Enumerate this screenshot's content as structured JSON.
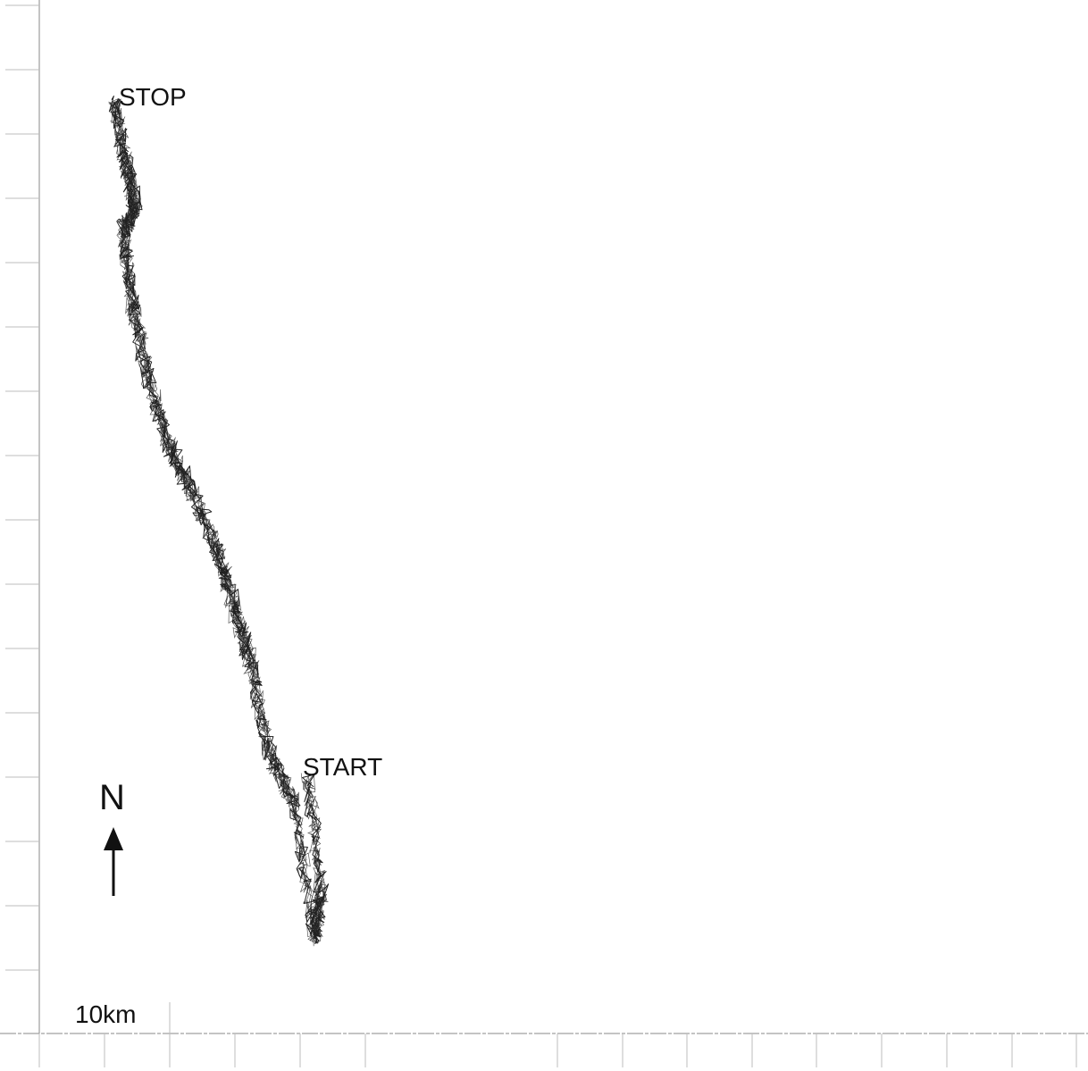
{
  "map": {
    "stop_label": "STOP",
    "start_label": "START",
    "north_label": "N",
    "scale_label": "10km",
    "track_color": "#222222",
    "gridline_color": "#bdbdbd",
    "axis_color": "#8a8a8a"
  },
  "icons": {
    "north_arrow": "north-arrow-icon"
  }
}
